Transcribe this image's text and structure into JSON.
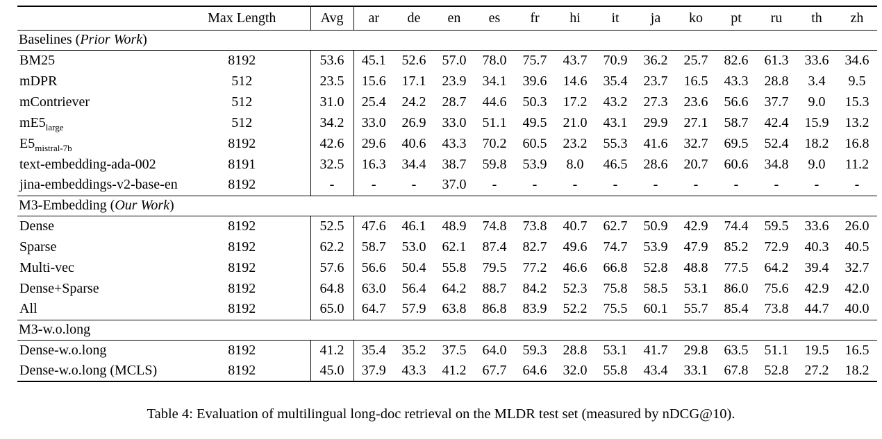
{
  "caption": "Table 4: Evaluation of multilingual long-doc retrieval on the MLDR test set (measured by nDCG@10).",
  "table": {
    "header": {
      "model": "",
      "max_length": "Max Length",
      "avg": "Avg",
      "languages": [
        "ar",
        "de",
        "en",
        "es",
        "fr",
        "hi",
        "it",
        "ja",
        "ko",
        "pt",
        "ru",
        "th",
        "zh"
      ]
    },
    "sections": [
      {
        "title_plain": "Baselines (",
        "title_italic": "Prior Work",
        "title_close": ")",
        "rows": [
          {
            "model": "BM25",
            "sub": "",
            "max_length": "8192",
            "avg": "53.6",
            "avg_bold": false,
            "values": [
              "45.1",
              "52.6",
              "57.0",
              "78.0",
              "75.7",
              "43.7",
              "70.9",
              "36.2",
              "25.7",
              "82.6",
              "61.3",
              "33.6",
              "34.6"
            ],
            "bold": [
              false,
              false,
              false,
              false,
              false,
              false,
              false,
              false,
              false,
              false,
              false,
              false,
              false
            ]
          },
          {
            "model": "mDPR",
            "sub": "",
            "max_length": "512",
            "avg": "23.5",
            "avg_bold": false,
            "values": [
              "15.6",
              "17.1",
              "23.9",
              "34.1",
              "39.6",
              "14.6",
              "35.4",
              "23.7",
              "16.5",
              "43.3",
              "28.8",
              "3.4",
              "9.5"
            ],
            "bold": [
              false,
              false,
              false,
              false,
              false,
              false,
              false,
              false,
              false,
              false,
              false,
              false,
              false
            ]
          },
          {
            "model": "mContriever",
            "sub": "",
            "max_length": "512",
            "avg": "31.0",
            "avg_bold": false,
            "values": [
              "25.4",
              "24.2",
              "28.7",
              "44.6",
              "50.3",
              "17.2",
              "43.2",
              "27.3",
              "23.6",
              "56.6",
              "37.7",
              "9.0",
              "15.3"
            ],
            "bold": [
              false,
              false,
              false,
              false,
              false,
              false,
              false,
              false,
              false,
              false,
              false,
              false,
              false
            ]
          },
          {
            "model": "mE5",
            "sub": "large",
            "max_length": "512",
            "avg": "34.2",
            "avg_bold": false,
            "values": [
              "33.0",
              "26.9",
              "33.0",
              "51.1",
              "49.5",
              "21.0",
              "43.1",
              "29.9",
              "27.1",
              "58.7",
              "42.4",
              "15.9",
              "13.2"
            ],
            "bold": [
              false,
              false,
              false,
              false,
              false,
              false,
              false,
              false,
              false,
              false,
              false,
              false,
              false
            ]
          },
          {
            "model": "E5",
            "sub": "mistral-7b",
            "max_length": "8192",
            "avg": "42.6",
            "avg_bold": false,
            "values": [
              "29.6",
              "40.6",
              "43.3",
              "70.2",
              "60.5",
              "23.2",
              "55.3",
              "41.6",
              "32.7",
              "69.5",
              "52.4",
              "18.2",
              "16.8"
            ],
            "bold": [
              false,
              false,
              false,
              false,
              false,
              false,
              false,
              false,
              false,
              false,
              false,
              false,
              false
            ]
          },
          {
            "model": "text-embedding-ada-002",
            "sub": "",
            "max_length": "8191",
            "avg": "32.5",
            "avg_bold": false,
            "values": [
              "16.3",
              "34.4",
              "38.7",
              "59.8",
              "53.9",
              "8.0",
              "46.5",
              "28.6",
              "20.7",
              "60.6",
              "34.8",
              "9.0",
              "11.2"
            ],
            "bold": [
              false,
              false,
              false,
              false,
              false,
              false,
              false,
              false,
              false,
              false,
              false,
              false,
              false
            ]
          },
          {
            "model": "jina-embeddings-v2-base-en",
            "sub": "",
            "max_length": "8192",
            "avg": "-",
            "avg_bold": false,
            "values": [
              "-",
              "-",
              "37.0",
              "-",
              "-",
              "-",
              "-",
              "-",
              "-",
              "-",
              "-",
              "-",
              "-"
            ],
            "bold": [
              false,
              false,
              false,
              false,
              false,
              false,
              false,
              false,
              false,
              false,
              false,
              false,
              false
            ]
          }
        ]
      },
      {
        "title_plain": "M3-Embedding (",
        "title_italic": "Our Work",
        "title_close": ")",
        "rows": [
          {
            "model": "Dense",
            "sub": "",
            "max_length": "8192",
            "avg": "52.5",
            "avg_bold": false,
            "values": [
              "47.6",
              "46.1",
              "48.9",
              "74.8",
              "73.8",
              "40.7",
              "62.7",
              "50.9",
              "42.9",
              "74.4",
              "59.5",
              "33.6",
              "26.0"
            ],
            "bold": [
              false,
              false,
              false,
              false,
              false,
              false,
              false,
              false,
              false,
              false,
              false,
              false,
              false
            ]
          },
          {
            "model": "Sparse",
            "sub": "",
            "max_length": "8192",
            "avg": "62.2",
            "avg_bold": false,
            "values": [
              "58.7",
              "53.0",
              "62.1",
              "87.4",
              "82.7",
              "49.6",
              "74.7",
              "53.9",
              "47.9",
              "85.2",
              "72.9",
              "40.3",
              "40.5"
            ],
            "bold": [
              false,
              false,
              false,
              false,
              false,
              false,
              false,
              false,
              false,
              false,
              false,
              false,
              false
            ]
          },
          {
            "model": "Multi-vec",
            "sub": "",
            "max_length": "8192",
            "avg": "57.6",
            "avg_bold": false,
            "values": [
              "56.6",
              "50.4",
              "55.8",
              "79.5",
              "77.2",
              "46.6",
              "66.8",
              "52.8",
              "48.8",
              "77.5",
              "64.2",
              "39.4",
              "32.7"
            ],
            "bold": [
              false,
              false,
              false,
              false,
              false,
              false,
              false,
              false,
              false,
              false,
              false,
              false,
              false
            ]
          },
          {
            "model": "Dense+Sparse",
            "sub": "",
            "max_length": "8192",
            "avg": "64.8",
            "avg_bold": false,
            "values": [
              "63.0",
              "56.4",
              "64.2",
              "88.7",
              "84.2",
              "52.3",
              "75.8",
              "58.5",
              "53.1",
              "86.0",
              "75.6",
              "42.9",
              "42.0"
            ],
            "bold": [
              false,
              false,
              true,
              true,
              true,
              true,
              true,
              false,
              false,
              true,
              true,
              false,
              true
            ]
          },
          {
            "model": "All",
            "sub": "",
            "max_length": "8192",
            "avg": "65.0",
            "avg_bold": true,
            "values": [
              "64.7",
              "57.9",
              "63.8",
              "86.8",
              "83.9",
              "52.2",
              "75.5",
              "60.1",
              "55.7",
              "85.4",
              "73.8",
              "44.7",
              "40.0"
            ],
            "bold": [
              true,
              true,
              false,
              false,
              false,
              false,
              false,
              true,
              true,
              false,
              false,
              true,
              false
            ]
          }
        ]
      },
      {
        "title_plain": "M3-w.o.long",
        "title_italic": "",
        "title_close": "",
        "rows": [
          {
            "model": "Dense-w.o.long",
            "sub": "",
            "max_length": "8192",
            "avg": "41.2",
            "avg_bold": false,
            "values": [
              "35.4",
              "35.2",
              "37.5",
              "64.0",
              "59.3",
              "28.8",
              "53.1",
              "41.7",
              "29.8",
              "63.5",
              "51.1",
              "19.5",
              "16.5"
            ],
            "bold": [
              false,
              false,
              false,
              false,
              false,
              false,
              false,
              false,
              false,
              false,
              false,
              false,
              false
            ]
          },
          {
            "model": "Dense-w.o.long (MCLS)",
            "sub": "",
            "max_length": "8192",
            "avg": "45.0",
            "avg_bold": false,
            "values": [
              "37.9",
              "43.3",
              "41.2",
              "67.7",
              "64.6",
              "32.0",
              "55.8",
              "43.4",
              "33.1",
              "67.8",
              "52.8",
              "27.2",
              "18.2"
            ],
            "bold": [
              false,
              false,
              false,
              false,
              false,
              false,
              false,
              false,
              false,
              false,
              false,
              false,
              false
            ]
          }
        ]
      }
    ]
  }
}
